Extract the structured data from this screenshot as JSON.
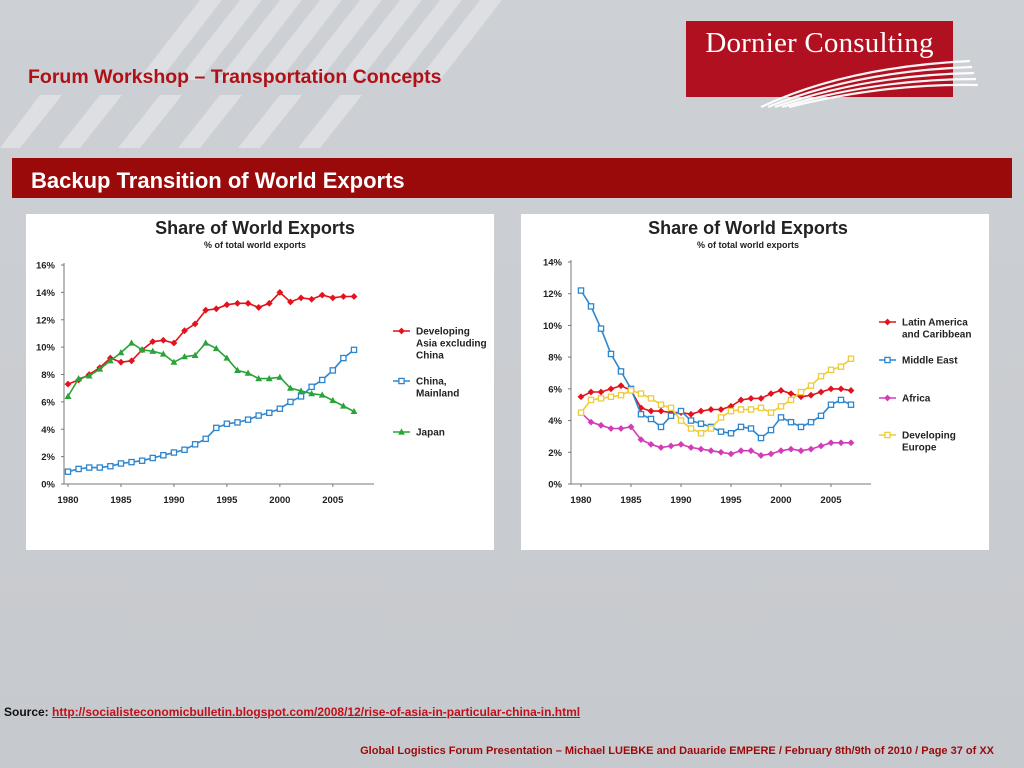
{
  "header": {
    "title": "Forum Workshop – Transportation Concepts",
    "logo_text": "Dornier Consulting"
  },
  "banner": {
    "title": "Backup Transition of World Exports"
  },
  "source": {
    "label": "Source:",
    "url_text": "http://socialisteconomicbulletin.blogspot.com/2008/12/rise-of-asia-in-particular-china-in.html"
  },
  "footer": {
    "text": "Global Logistics Forum Presentation – Michael LUEBKE and Dauaride EMPERE / February 8th/9th of 2010 / Page 37 of XX"
  },
  "colors": {
    "brand_red": "#b01020",
    "banner_red": "#9b0a0b",
    "series_red": "#e3121c",
    "series_blue": "#2e86cf",
    "series_green": "#2aa338",
    "series_magenta": "#d33cb8",
    "series_yellow": "#efcc3a"
  },
  "chart_data": [
    {
      "type": "line",
      "title": "Share of World Exports",
      "subtitle": "% of total world exports",
      "xlabel": "",
      "ylabel": "",
      "x_ticks": [
        1980,
        1985,
        1990,
        1995,
        2000,
        2005
      ],
      "ylim": [
        0,
        16
      ],
      "y_ticks": [
        "0%",
        "2%",
        "4%",
        "6%",
        "8%",
        "10%",
        "12%",
        "14%",
        "16%"
      ],
      "x": [
        1980,
        1981,
        1982,
        1983,
        1984,
        1985,
        1986,
        1987,
        1988,
        1989,
        1990,
        1991,
        1992,
        1993,
        1994,
        1995,
        1996,
        1997,
        1998,
        1999,
        2000,
        2001,
        2002,
        2003,
        2004,
        2005,
        2006,
        2007
      ],
      "grid": false,
      "legend_position": "right",
      "series": [
        {
          "name": "Developing Asia excluding China",
          "legend_lines": [
            "Developing",
            "Asia excluding",
            "China"
          ],
          "color": "#e3121c",
          "marker": "diamond",
          "values": [
            7.3,
            7.6,
            8.0,
            8.5,
            9.2,
            8.9,
            9.0,
            9.8,
            10.4,
            10.5,
            10.3,
            11.2,
            11.7,
            12.7,
            12.8,
            13.1,
            13.2,
            13.2,
            12.9,
            13.2,
            14.0,
            13.3,
            13.6,
            13.5,
            13.8,
            13.6,
            13.7,
            13.7
          ]
        },
        {
          "name": "China, Mainland",
          "legend_lines": [
            "China,",
            "Mainland"
          ],
          "color": "#2e86cf",
          "marker": "square-open",
          "values": [
            0.9,
            1.1,
            1.2,
            1.2,
            1.3,
            1.5,
            1.6,
            1.7,
            1.9,
            2.1,
            2.3,
            2.5,
            2.9,
            3.3,
            4.1,
            4.4,
            4.5,
            4.7,
            5.0,
            5.2,
            5.5,
            6.0,
            6.4,
            7.1,
            7.6,
            8.3,
            9.2,
            9.8
          ]
        },
        {
          "name": "Japan",
          "legend_lines": [
            "Japan"
          ],
          "color": "#2aa338",
          "marker": "triangle",
          "values": [
            6.4,
            7.7,
            7.9,
            8.4,
            9.0,
            9.6,
            10.3,
            9.8,
            9.7,
            9.5,
            8.9,
            9.3,
            9.4,
            10.3,
            9.9,
            9.2,
            8.3,
            8.1,
            7.7,
            7.7,
            7.8,
            7.0,
            6.8,
            6.6,
            6.5,
            6.1,
            5.7,
            5.3
          ]
        }
      ]
    },
    {
      "type": "line",
      "title": "Share of World Exports",
      "subtitle": "% of total world exports",
      "xlabel": "",
      "ylabel": "",
      "x_ticks": [
        1980,
        1985,
        1990,
        1995,
        2000,
        2005
      ],
      "ylim": [
        0,
        14
      ],
      "y_ticks": [
        "0%",
        "2%",
        "4%",
        "6%",
        "8%",
        "10%",
        "12%",
        "14%"
      ],
      "x": [
        1980,
        1981,
        1982,
        1983,
        1984,
        1985,
        1986,
        1987,
        1988,
        1989,
        1990,
        1991,
        1992,
        1993,
        1994,
        1995,
        1996,
        1997,
        1998,
        1999,
        2000,
        2001,
        2002,
        2003,
        2004,
        2005,
        2006,
        2007
      ],
      "grid": false,
      "legend_position": "right",
      "series": [
        {
          "name": "Latin America and Caribbean",
          "legend_lines": [
            "Latin America",
            "and Caribbean"
          ],
          "color": "#e3121c",
          "marker": "diamond",
          "values": [
            5.5,
            5.8,
            5.8,
            6.0,
            6.2,
            5.9,
            4.8,
            4.6,
            4.6,
            4.5,
            4.5,
            4.4,
            4.6,
            4.7,
            4.7,
            4.9,
            5.3,
            5.4,
            5.4,
            5.7,
            5.9,
            5.7,
            5.5,
            5.6,
            5.8,
            6.0,
            6.0,
            5.9
          ]
        },
        {
          "name": "Middle East",
          "legend_lines": [
            "Middle East"
          ],
          "color": "#2e86cf",
          "marker": "square-open",
          "values": [
            12.2,
            11.2,
            9.8,
            8.2,
            7.1,
            6.0,
            4.4,
            4.1,
            3.6,
            4.3,
            4.6,
            4.0,
            3.8,
            3.6,
            3.3,
            3.2,
            3.6,
            3.5,
            2.9,
            3.4,
            4.2,
            3.9,
            3.6,
            3.9,
            4.3,
            5.0,
            5.3,
            5.0
          ]
        },
        {
          "name": "Africa",
          "legend_lines": [
            "Africa"
          ],
          "color": "#d33cb8",
          "marker": "diamond",
          "values": [
            4.5,
            3.9,
            3.7,
            3.5,
            3.5,
            3.6,
            2.8,
            2.5,
            2.3,
            2.4,
            2.5,
            2.3,
            2.2,
            2.1,
            2.0,
            1.9,
            2.1,
            2.1,
            1.8,
            1.9,
            2.1,
            2.2,
            2.1,
            2.2,
            2.4,
            2.6,
            2.6,
            2.6
          ]
        },
        {
          "name": "Developing Europe",
          "legend_lines": [
            "Developing",
            "Europe"
          ],
          "color": "#efcc3a",
          "marker": "square-open",
          "values": [
            4.5,
            5.3,
            5.4,
            5.5,
            5.6,
            5.9,
            5.7,
            5.4,
            5.0,
            4.8,
            4.0,
            3.5,
            3.2,
            3.5,
            4.2,
            4.6,
            4.7,
            4.7,
            4.8,
            4.5,
            4.9,
            5.3,
            5.8,
            6.2,
            6.8,
            7.2,
            7.4,
            7.9
          ]
        }
      ]
    }
  ]
}
